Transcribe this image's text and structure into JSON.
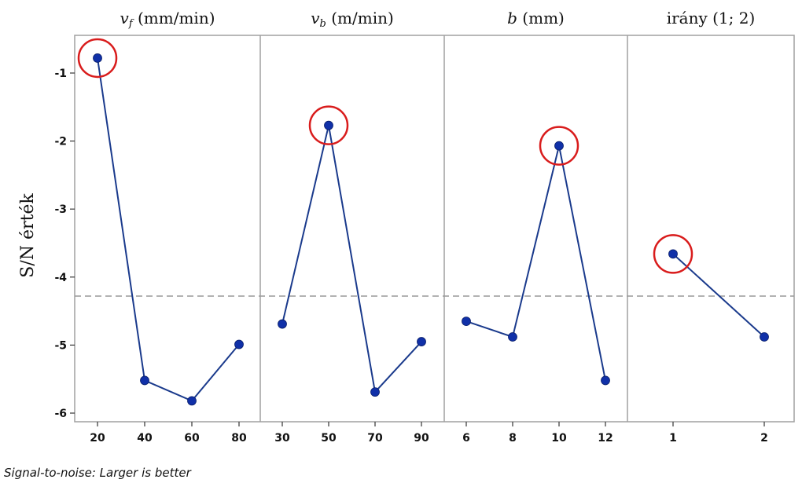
{
  "chart_data": {
    "type": "line",
    "title": "",
    "ylabel": "S/N érték",
    "footnote": "Signal-to-noise: Larger is better",
    "ylim": [
      -6.2,
      -0.4
    ],
    "y_ticks": [
      -1,
      -2,
      -3,
      -4,
      -5,
      -6
    ],
    "y_tick_labels": [
      "-1",
      "-2",
      "-3",
      "-4",
      "-5",
      "-6"
    ],
    "reference_line": -4.28,
    "colors": {
      "line": "#1a3a8c",
      "point": "#1030a8",
      "highlight": "#d91c1c",
      "reference": "#999999",
      "frame": "#a0a0a0"
    },
    "panels": [
      {
        "title_var": "v",
        "title_sub": "f",
        "title_rest": " (mm/min)",
        "categories": [
          "20",
          "40",
          "60",
          "80"
        ],
        "values": [
          -0.78,
          -5.52,
          -5.82,
          -4.99
        ],
        "highlight_index": 0
      },
      {
        "title_var": "v",
        "title_sub": "b",
        "title_rest": " (m/min)",
        "categories": [
          "30",
          "50",
          "70",
          "90"
        ],
        "values": [
          -4.69,
          -1.77,
          -5.69,
          -4.95
        ],
        "highlight_index": 1
      },
      {
        "title_var": "b",
        "title_sub": "",
        "title_rest": " (mm)",
        "categories": [
          "6",
          "8",
          "10",
          "12"
        ],
        "values": [
          -4.65,
          -4.88,
          -2.07,
          -5.52
        ],
        "highlight_index": 2
      },
      {
        "title_var": "",
        "title_sub": "",
        "title_rest": "irány (1; 2)",
        "categories": [
          "1",
          "2"
        ],
        "values": [
          -3.66,
          -4.88
        ],
        "highlight_index": 0
      }
    ]
  }
}
